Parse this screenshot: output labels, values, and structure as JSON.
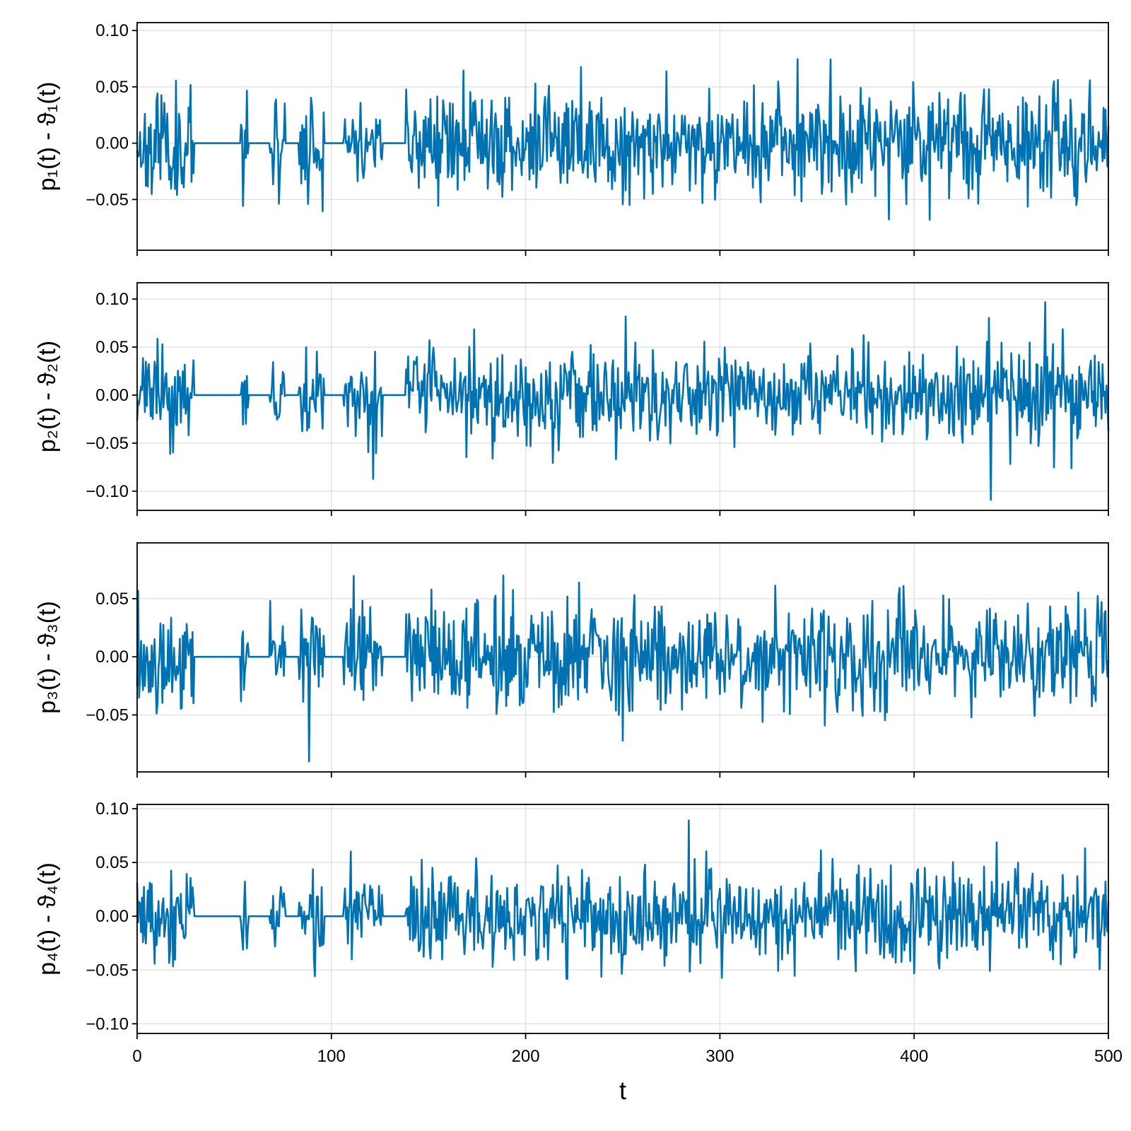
{
  "chart_data": [
    {
      "type": "line",
      "ylabel": "p₁(t) - ϑ₁(t)",
      "xlim": [
        0,
        500
      ],
      "ylim": [
        -0.095,
        0.107
      ],
      "yticks": [
        0.1,
        0.05,
        0.0,
        -0.05
      ],
      "ytick_labels": [
        "0.10",
        "0.05",
        "0.00",
        "−0.05"
      ],
      "series": [
        {
          "color": "#0072b2",
          "x_range": [
            0,
            500
          ],
          "n_points": 1000,
          "seed": 11,
          "amplitude": 0.024,
          "clip": [
            -0.085,
            0.098
          ],
          "gaps": [
            [
              29,
              55
            ],
            [
              57,
              70
            ],
            [
              76,
              85
            ],
            [
              96,
              108
            ],
            [
              126,
              140
            ]
          ]
        }
      ]
    },
    {
      "type": "line",
      "ylabel": "p₂(t) - ϑ₂(t)",
      "xlim": [
        0,
        500
      ],
      "ylim": [
        -0.12,
        0.117
      ],
      "yticks": [
        0.1,
        0.05,
        0.0,
        -0.05,
        -0.1
      ],
      "ytick_labels": [
        "0.10",
        "0.05",
        "0.00",
        "−0.05",
        "−0.10"
      ],
      "series": [
        {
          "color": "#0072b2",
          "x_range": [
            0,
            500
          ],
          "n_points": 1000,
          "seed": 23,
          "amplitude": 0.024,
          "clip": [
            -0.109,
            0.104
          ],
          "gaps": [
            [
              29,
              55
            ],
            [
              57,
              70
            ],
            [
              76,
              85
            ],
            [
              96,
              108
            ],
            [
              126,
              140
            ]
          ]
        }
      ]
    },
    {
      "type": "line",
      "ylabel": "p₃(t) - ϑ₃(t)",
      "xlim": [
        0,
        500
      ],
      "ylim": [
        -0.099,
        0.098
      ],
      "yticks": [
        0.05,
        0.0,
        -0.05
      ],
      "ytick_labels": [
        "0.05",
        "0.00",
        "−0.05"
      ],
      "series": [
        {
          "color": "#0072b2",
          "x_range": [
            0,
            500
          ],
          "n_points": 1000,
          "seed": 37,
          "amplitude": 0.023,
          "clip": [
            -0.09,
            0.089
          ],
          "gaps": [
            [
              29,
              55
            ],
            [
              57,
              70
            ],
            [
              76,
              85
            ],
            [
              96,
              108
            ],
            [
              126,
              140
            ]
          ]
        }
      ]
    },
    {
      "type": "line",
      "ylabel": "p₄(t) - ϑ₄(t)",
      "xlim": [
        0,
        500
      ],
      "ylim": [
        -0.109,
        0.104
      ],
      "yticks": [
        0.1,
        0.05,
        0.0,
        -0.05,
        -0.1
      ],
      "ytick_labels": [
        "0.10",
        "0.05",
        "0.00",
        "−0.05",
        "−0.10"
      ],
      "series": [
        {
          "color": "#0072b2",
          "x_range": [
            0,
            500
          ],
          "n_points": 1000,
          "seed": 53,
          "amplitude": 0.022,
          "clip": [
            -0.098,
            0.094
          ],
          "gaps": [
            [
              29,
              55
            ],
            [
              57,
              70
            ],
            [
              76,
              85
            ],
            [
              96,
              108
            ],
            [
              126,
              140
            ]
          ]
        }
      ]
    }
  ],
  "shared_x": {
    "xlabel": "t",
    "xticks": [
      0,
      100,
      200,
      300,
      400,
      500
    ],
    "xtick_labels": [
      "0",
      "100",
      "200",
      "300",
      "400",
      "500"
    ],
    "grid": true
  }
}
